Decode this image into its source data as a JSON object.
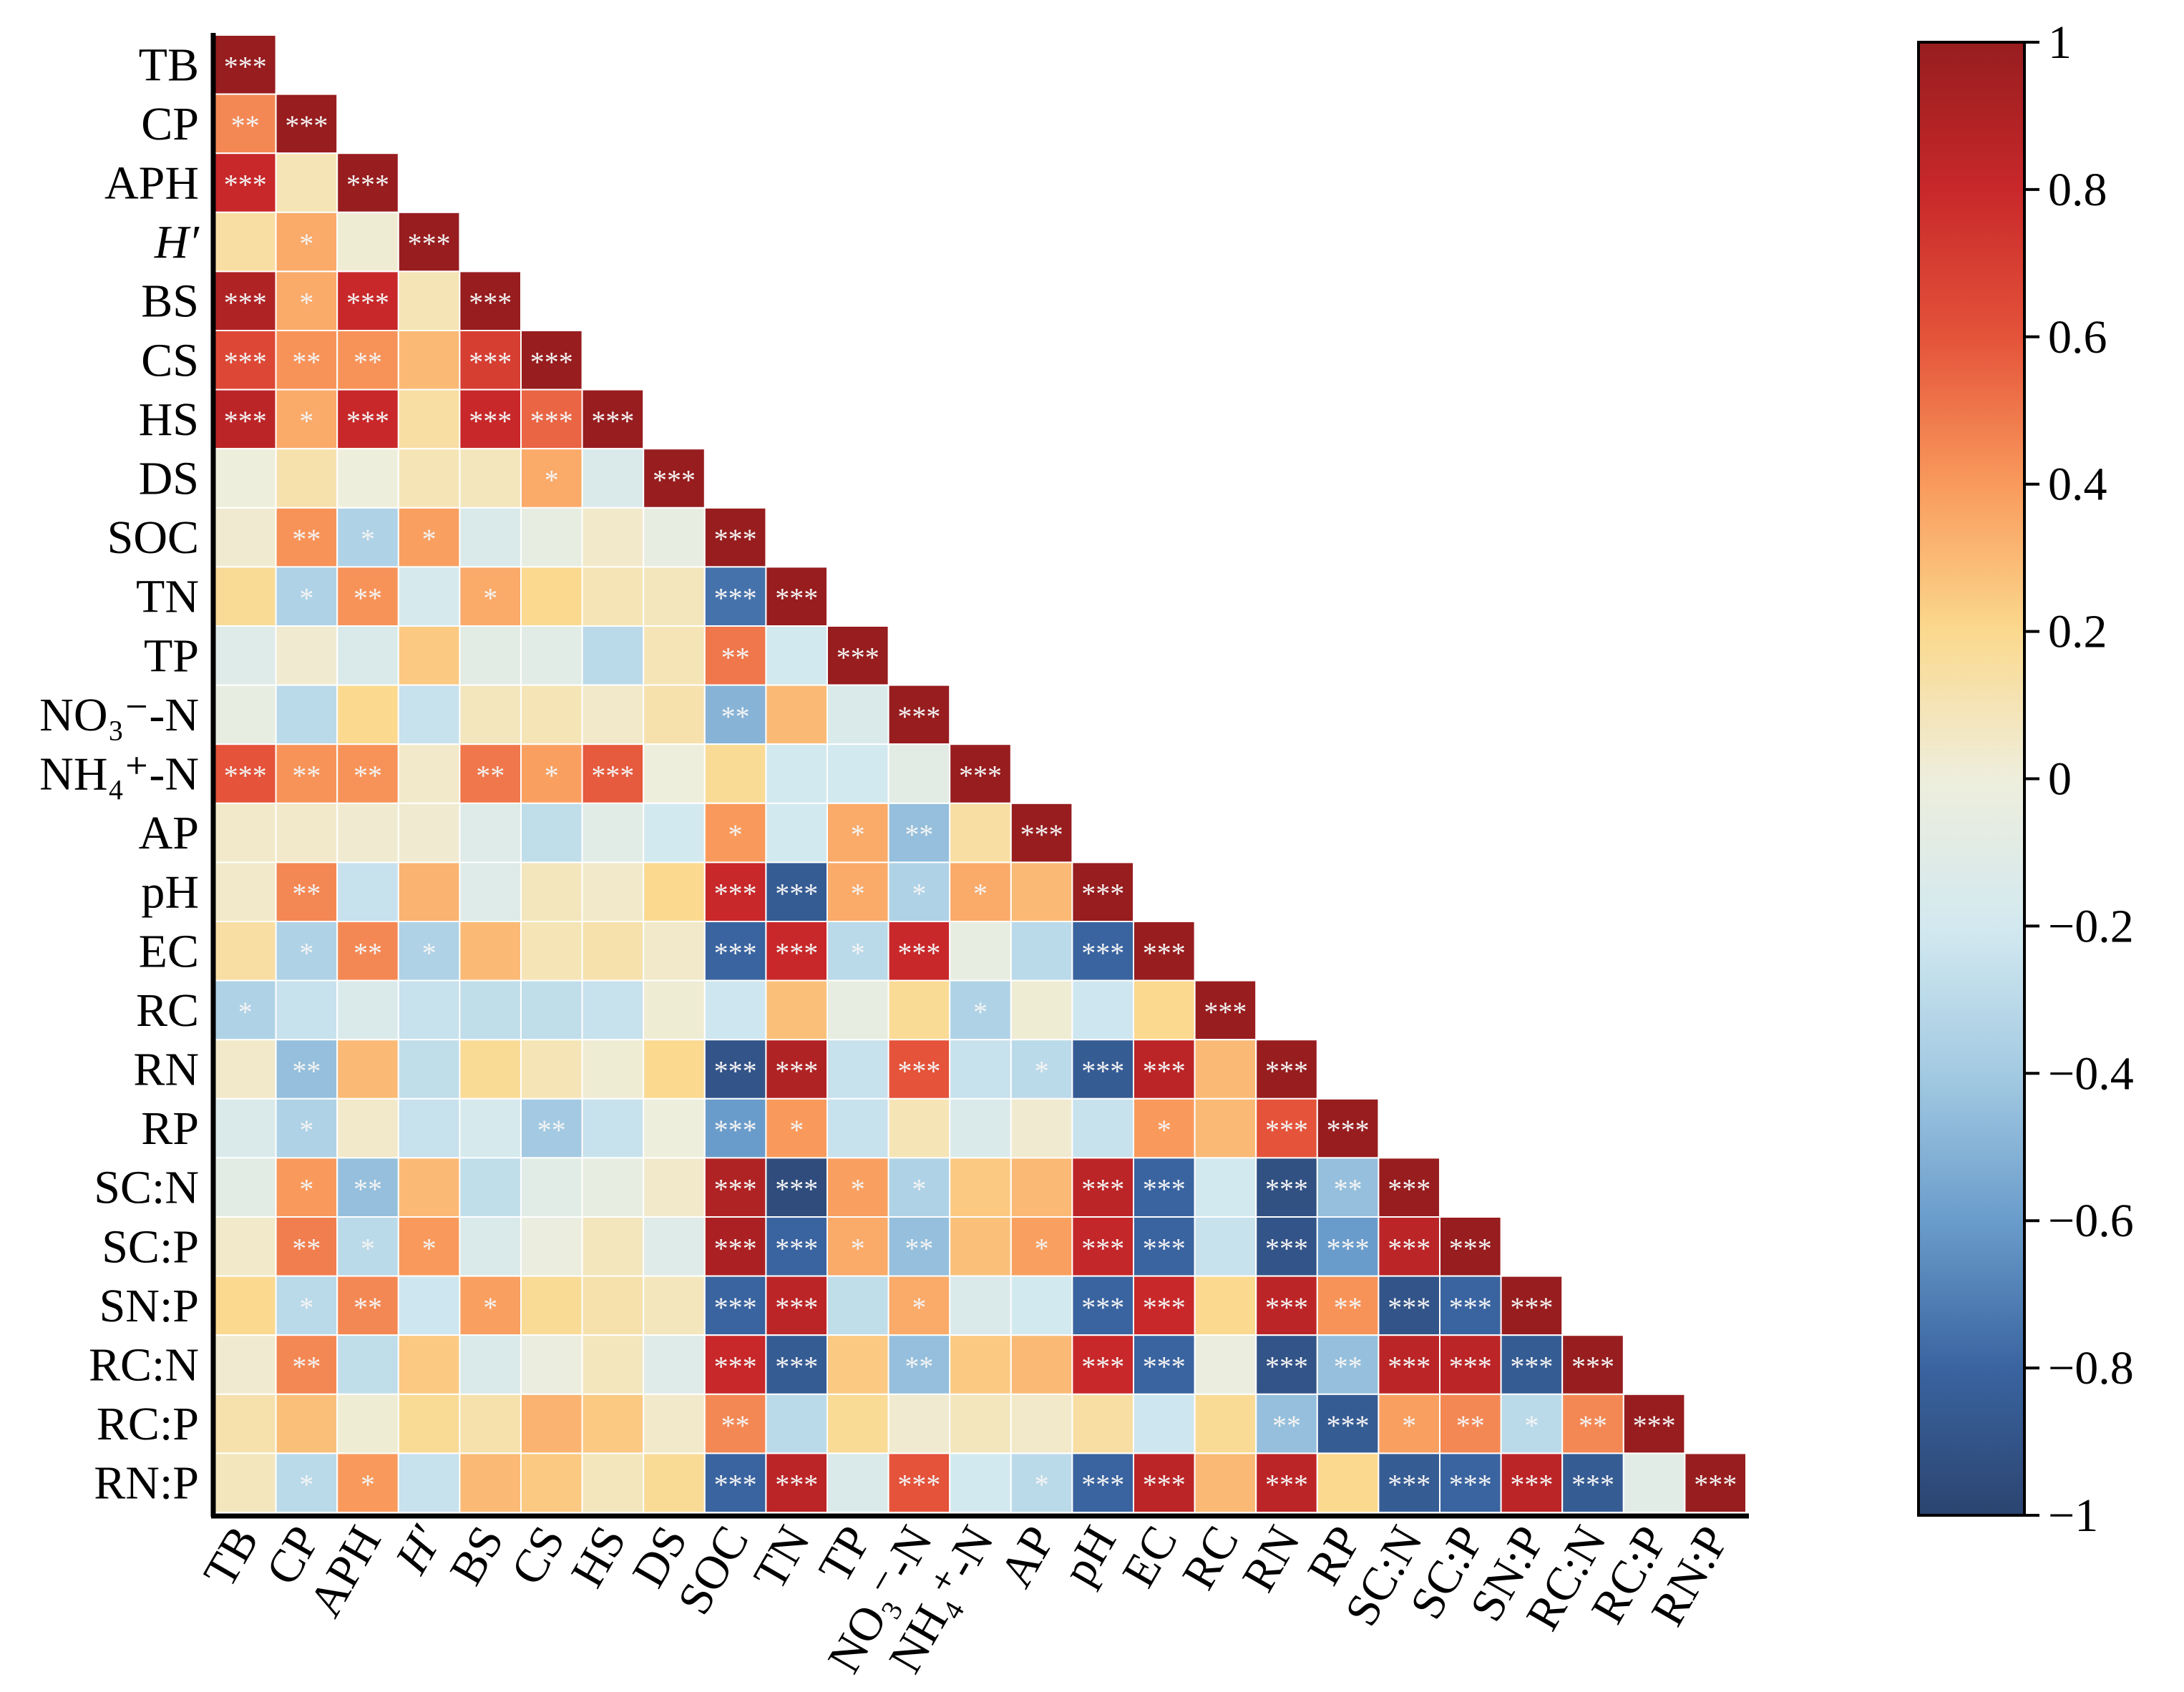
{
  "chart_data": {
    "type": "heatmap",
    "title": "",
    "layout": "lower-triangle correlation matrix",
    "labels": [
      "TB",
      "CP",
      "APH",
      "H′",
      "BS",
      "CS",
      "HS",
      "DS",
      "SOC",
      "TN",
      "TP",
      "NO₃⁻-N",
      "NH₄⁺-N",
      "AP",
      "pH",
      "EC",
      "RC",
      "RN",
      "RP",
      "SC:N",
      "SC:P",
      "SN:P",
      "RC:N",
      "RC:P",
      "RN:P"
    ],
    "italic_labels": [
      "H′"
    ],
    "values": [
      [
        1
      ],
      [
        0.45,
        1
      ],
      [
        0.8,
        0.1,
        1
      ],
      [
        0.15,
        0.35,
        0.02,
        1
      ],
      [
        0.9,
        0.35,
        0.8,
        0.1,
        1
      ],
      [
        0.65,
        0.42,
        0.42,
        0.3,
        0.7,
        1
      ],
      [
        0.85,
        0.35,
        0.8,
        0.15,
        0.8,
        0.55,
        1
      ],
      [
        0.0,
        0.12,
        0.0,
        0.1,
        0.08,
        0.35,
        -0.15,
        1
      ],
      [
        0.03,
        0.42,
        -0.35,
        0.38,
        -0.15,
        -0.05,
        0.05,
        -0.05,
        1
      ],
      [
        0.18,
        -0.35,
        0.42,
        -0.18,
        0.35,
        0.2,
        0.1,
        0.08,
        -0.75,
        1
      ],
      [
        -0.12,
        0.03,
        -0.15,
        0.25,
        -0.08,
        -0.1,
        -0.3,
        0.1,
        0.5,
        -0.2,
        1
      ],
      [
        -0.05,
        -0.3,
        0.2,
        -0.25,
        0.08,
        0.1,
        0.05,
        0.12,
        -0.5,
        0.3,
        -0.15,
        1
      ],
      [
        0.6,
        0.42,
        0.42,
        0.05,
        0.5,
        0.38,
        0.58,
        0.0,
        0.18,
        -0.2,
        -0.2,
        -0.08,
        1
      ],
      [
        0.05,
        0.05,
        0.03,
        0.03,
        -0.12,
        -0.28,
        -0.1,
        -0.2,
        0.4,
        -0.2,
        0.35,
        -0.45,
        0.15,
        1
      ],
      [
        0.05,
        0.45,
        -0.25,
        0.32,
        -0.12,
        0.08,
        0.05,
        0.2,
        0.8,
        -0.85,
        0.35,
        -0.35,
        0.35,
        0.3,
        1
      ],
      [
        0.15,
        -0.35,
        0.45,
        -0.35,
        0.3,
        0.1,
        0.12,
        0.05,
        -0.8,
        0.8,
        -0.3,
        0.8,
        -0.05,
        -0.3,
        -0.8,
        1
      ],
      [
        -0.35,
        -0.25,
        -0.15,
        -0.25,
        -0.28,
        -0.28,
        -0.25,
        0.02,
        -0.22,
        0.28,
        -0.05,
        0.18,
        -0.35,
        0.02,
        -0.22,
        0.2,
        1
      ],
      [
        0.05,
        -0.45,
        0.3,
        -0.28,
        0.18,
        0.1,
        0.02,
        0.2,
        -0.9,
        0.9,
        -0.25,
        0.6,
        -0.25,
        -0.3,
        -0.85,
        0.85,
        0.3,
        1
      ],
      [
        -0.15,
        -0.35,
        0.05,
        -0.25,
        -0.18,
        -0.4,
        -0.25,
        0.0,
        -0.6,
        0.4,
        -0.25,
        0.1,
        -0.15,
        0.03,
        -0.25,
        0.4,
        0.3,
        0.6,
        1
      ],
      [
        -0.08,
        0.4,
        -0.45,
        0.3,
        -0.28,
        -0.1,
        -0.05,
        0.05,
        0.9,
        -0.95,
        0.38,
        -0.35,
        0.25,
        0.3,
        0.85,
        -0.8,
        -0.2,
        -0.92,
        -0.45,
        1
      ],
      [
        0.05,
        0.48,
        -0.3,
        0.4,
        -0.15,
        -0.02,
        0.08,
        -0.12,
        0.92,
        -0.8,
        0.35,
        -0.45,
        0.28,
        0.38,
        0.82,
        -0.8,
        -0.25,
        -0.9,
        -0.6,
        0.85,
        1
      ],
      [
        0.2,
        -0.3,
        0.45,
        -0.22,
        0.38,
        0.18,
        0.12,
        0.08,
        -0.8,
        0.85,
        -0.28,
        0.35,
        -0.15,
        -0.2,
        -0.8,
        0.8,
        0.2,
        0.85,
        0.42,
        -0.9,
        -0.8,
        1
      ],
      [
        0.03,
        0.45,
        -0.28,
        0.25,
        -0.15,
        -0.02,
        0.08,
        -0.12,
        0.8,
        -0.85,
        0.25,
        -0.45,
        0.25,
        0.3,
        0.8,
        -0.8,
        -0.02,
        -0.9,
        -0.45,
        0.85,
        0.85,
        -0.85,
        1
      ],
      [
        0.12,
        0.28,
        0.02,
        0.18,
        0.12,
        0.32,
        0.25,
        0.05,
        0.45,
        -0.3,
        0.18,
        0.03,
        0.08,
        0.05,
        0.15,
        -0.22,
        0.18,
        -0.45,
        -0.85,
        0.38,
        0.45,
        -0.3,
        0.45,
        1
      ],
      [
        0.08,
        -0.3,
        0.4,
        -0.25,
        0.3,
        0.25,
        0.08,
        0.18,
        -0.8,
        0.85,
        -0.15,
        0.6,
        -0.2,
        -0.3,
        -0.8,
        0.85,
        0.3,
        0.85,
        0.2,
        -0.85,
        -0.8,
        0.85,
        -0.85,
        -0.1,
        1
      ]
    ],
    "significance": [
      [
        "***"
      ],
      [
        "**",
        "***"
      ],
      [
        "***",
        "",
        "***"
      ],
      [
        "",
        "*",
        "",
        "***"
      ],
      [
        "***",
        "*",
        "***",
        "",
        "***"
      ],
      [
        "***",
        "**",
        "**",
        "",
        "***",
        "***"
      ],
      [
        "***",
        "*",
        "***",
        "",
        "***",
        "***",
        "***"
      ],
      [
        "",
        "",
        "",
        "",
        "",
        "*",
        "",
        "***"
      ],
      [
        "",
        "**",
        "*",
        "*",
        "",
        "",
        "",
        "",
        "***"
      ],
      [
        "",
        "*",
        "**",
        "",
        "*",
        "",
        "",
        "",
        "***",
        "***"
      ],
      [
        "",
        "",
        "",
        "",
        "",
        "",
        "",
        "",
        "**",
        "",
        "***"
      ],
      [
        "",
        "",
        "",
        "",
        "",
        "",
        "",
        "",
        "**",
        "",
        "",
        "***"
      ],
      [
        "***",
        "**",
        "**",
        "",
        "**",
        "*",
        "***",
        "",
        "",
        "",
        "",
        "",
        "***"
      ],
      [
        "",
        "",
        "",
        "",
        "",
        "",
        "",
        "",
        "*",
        "",
        "*",
        "**",
        "",
        "***"
      ],
      [
        "",
        "**",
        "",
        "",
        "",
        "",
        "",
        "",
        "***",
        "***",
        "*",
        "*",
        "*",
        "",
        "***"
      ],
      [
        "",
        "*",
        "**",
        "*",
        "",
        "",
        "",
        "",
        "***",
        "***",
        "*",
        "***",
        "",
        "",
        "***",
        "***"
      ],
      [
        "*",
        "",
        "",
        "",
        "",
        "",
        "",
        "",
        "",
        "",
        "",
        "",
        "*",
        "",
        "",
        "",
        "***"
      ],
      [
        "",
        "**",
        "",
        "",
        "",
        "",
        "",
        "",
        "***",
        "***",
        "",
        "***",
        "",
        "*",
        "***",
        "***",
        "",
        "***"
      ],
      [
        "",
        "*",
        "",
        "",
        "",
        "**",
        "",
        "",
        "***",
        "*",
        "",
        "",
        "",
        "",
        "",
        "*",
        "",
        "***",
        "***"
      ],
      [
        "",
        "*",
        "**",
        "",
        "",
        "",
        "",
        "",
        "***",
        "***",
        "*",
        "*",
        "",
        "",
        "***",
        "***",
        "",
        "***",
        "**",
        "***"
      ],
      [
        "",
        "**",
        "*",
        "*",
        "",
        "",
        "",
        "",
        "***",
        "***",
        "*",
        "**",
        "",
        "*",
        "***",
        "***",
        "",
        "***",
        "***",
        "***",
        "***"
      ],
      [
        "",
        "*",
        "**",
        "",
        "*",
        "",
        "",
        "",
        "***",
        "***",
        "",
        "*",
        "",
        "",
        "***",
        "***",
        "",
        "***",
        "**",
        "***",
        "***",
        "***"
      ],
      [
        "",
        "**",
        "",
        "",
        "",
        "",
        "",
        "",
        "***",
        "***",
        "",
        "**",
        "",
        "",
        "***",
        "***",
        "",
        "***",
        "**",
        "***",
        "***",
        "***",
        "***"
      ],
      [
        "",
        "",
        "",
        "",
        "",
        "",
        "",
        "",
        "**",
        "",
        "",
        "",
        "",
        "",
        "",
        "",
        "",
        "**",
        "***",
        "*",
        "**",
        "*",
        "**",
        "***"
      ],
      [
        "",
        "*",
        "*",
        "",
        "",
        "",
        "",
        "",
        "***",
        "***",
        "",
        "***",
        "",
        "*",
        "***",
        "***",
        "",
        "***",
        "",
        "***",
        "***",
        "***",
        "***",
        "",
        "***"
      ]
    ],
    "colorbar": {
      "range": [
        -1,
        1
      ],
      "ticks": [
        "1",
        "0.8",
        "0.6",
        "0.4",
        "0.2",
        "0",
        "−0.2",
        "−0.4",
        "−0.6",
        "−0.8",
        "−1"
      ],
      "tick_values": [
        1,
        0.8,
        0.6,
        0.4,
        0.2,
        0,
        -0.2,
        -0.4,
        -0.6,
        -0.8,
        -1
      ],
      "colormap": "RdYlBu reversed",
      "stops": [
        "#2b4470",
        "#3a64a0",
        "#6a9ccb",
        "#a3cae2",
        "#d3e9f0",
        "#eeeedc",
        "#fbd98e",
        "#f99a5c",
        "#e4533a",
        "#c8282a",
        "#971d1f"
      ]
    }
  }
}
